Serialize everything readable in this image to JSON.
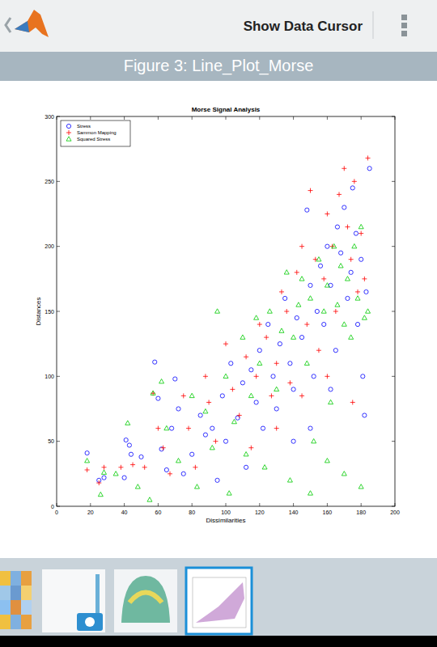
{
  "app": {
    "action": "Show Data Cursor",
    "figure_title": "Figure 3: Line_Plot_Morse"
  },
  "chart_data": {
    "type": "scatter",
    "title": "Morse Signal Analysis",
    "x_label": "Dissimilarities",
    "y_label": "Distances",
    "xlim": [
      0,
      200
    ],
    "xticks": [
      0,
      20,
      40,
      60,
      80,
      100,
      120,
      140,
      160,
      180,
      200
    ],
    "ylim": [
      0,
      300
    ],
    "yticks": [
      0,
      50,
      100,
      150,
      200,
      250,
      300
    ],
    "grid": false,
    "legend": "northwest",
    "series": [
      {
        "name": "Stress",
        "color": "#0000ff",
        "marker": "circle",
        "x": [
          18,
          25,
          28,
          40,
          41,
          43,
          44,
          50,
          58,
          60,
          62,
          65,
          68,
          70,
          72,
          75,
          80,
          85,
          88,
          92,
          95,
          98,
          100,
          103,
          107,
          110,
          112,
          115,
          118,
          120,
          122,
          125,
          128,
          130,
          132,
          135,
          138,
          140,
          142,
          145,
          148,
          150,
          152,
          154,
          156,
          158,
          160,
          162,
          165,
          166,
          168,
          170,
          172,
          174,
          175,
          177,
          178,
          180,
          182,
          183,
          185,
          181,
          150,
          162,
          140
        ],
        "values": [
          41,
          20,
          22,
          22,
          51,
          47,
          40,
          38,
          111,
          83,
          44,
          28,
          60,
          98,
          75,
          25,
          40,
          70,
          55,
          60,
          20,
          85,
          50,
          110,
          68,
          95,
          30,
          105,
          80,
          120,
          60,
          140,
          100,
          75,
          125,
          160,
          110,
          90,
          145,
          130,
          228,
          170,
          100,
          150,
          185,
          140,
          200,
          170,
          120,
          215,
          195,
          230,
          160,
          180,
          245,
          210,
          140,
          190,
          70,
          165,
          260,
          100,
          60,
          90,
          50
        ]
      },
      {
        "name": "Sammon Mapping",
        "color": "#ff0000",
        "marker": "plus",
        "x": [
          18,
          25,
          28,
          38,
          45,
          52,
          57,
          60,
          63,
          67,
          75,
          78,
          82,
          88,
          90,
          94,
          100,
          104,
          108,
          112,
          115,
          118,
          120,
          124,
          127,
          130,
          133,
          136,
          138,
          142,
          145,
          148,
          150,
          153,
          155,
          158,
          160,
          163,
          165,
          167,
          170,
          172,
          174,
          176,
          178,
          180,
          182,
          184,
          175,
          160,
          145,
          130
        ],
        "values": [
          28,
          18,
          30,
          30,
          32,
          30,
          87,
          60,
          45,
          25,
          85,
          60,
          30,
          100,
          80,
          50,
          125,
          90,
          70,
          115,
          45,
          100,
          140,
          130,
          85,
          110,
          165,
          150,
          95,
          180,
          200,
          140,
          243,
          190,
          120,
          175,
          225,
          200,
          150,
          240,
          260,
          215,
          190,
          250,
          165,
          210,
          175,
          268,
          80,
          100,
          85,
          60
        ]
      },
      {
        "name": "Squared Stress",
        "color": "#00cc00",
        "marker": "triangle",
        "x": [
          18,
          26,
          28,
          35,
          42,
          48,
          55,
          57,
          62,
          65,
          72,
          80,
          83,
          88,
          92,
          95,
          100,
          102,
          105,
          110,
          112,
          115,
          118,
          120,
          123,
          126,
          130,
          133,
          136,
          138,
          140,
          143,
          145,
          148,
          150,
          152,
          155,
          158,
          160,
          162,
          164,
          166,
          168,
          170,
          172,
          174,
          176,
          178,
          180,
          182,
          184,
          180,
          170,
          160,
          150
        ],
        "values": [
          35,
          9,
          26,
          25,
          64,
          15,
          5,
          87,
          96,
          60,
          35,
          85,
          15,
          73,
          45,
          150,
          100,
          10,
          65,
          130,
          40,
          85,
          145,
          110,
          30,
          150,
          90,
          135,
          180,
          20,
          130,
          155,
          175,
          110,
          160,
          50,
          190,
          150,
          170,
          80,
          200,
          155,
          185,
          140,
          175,
          130,
          200,
          160,
          215,
          145,
          150,
          15,
          25,
          35,
          10
        ]
      }
    ]
  }
}
